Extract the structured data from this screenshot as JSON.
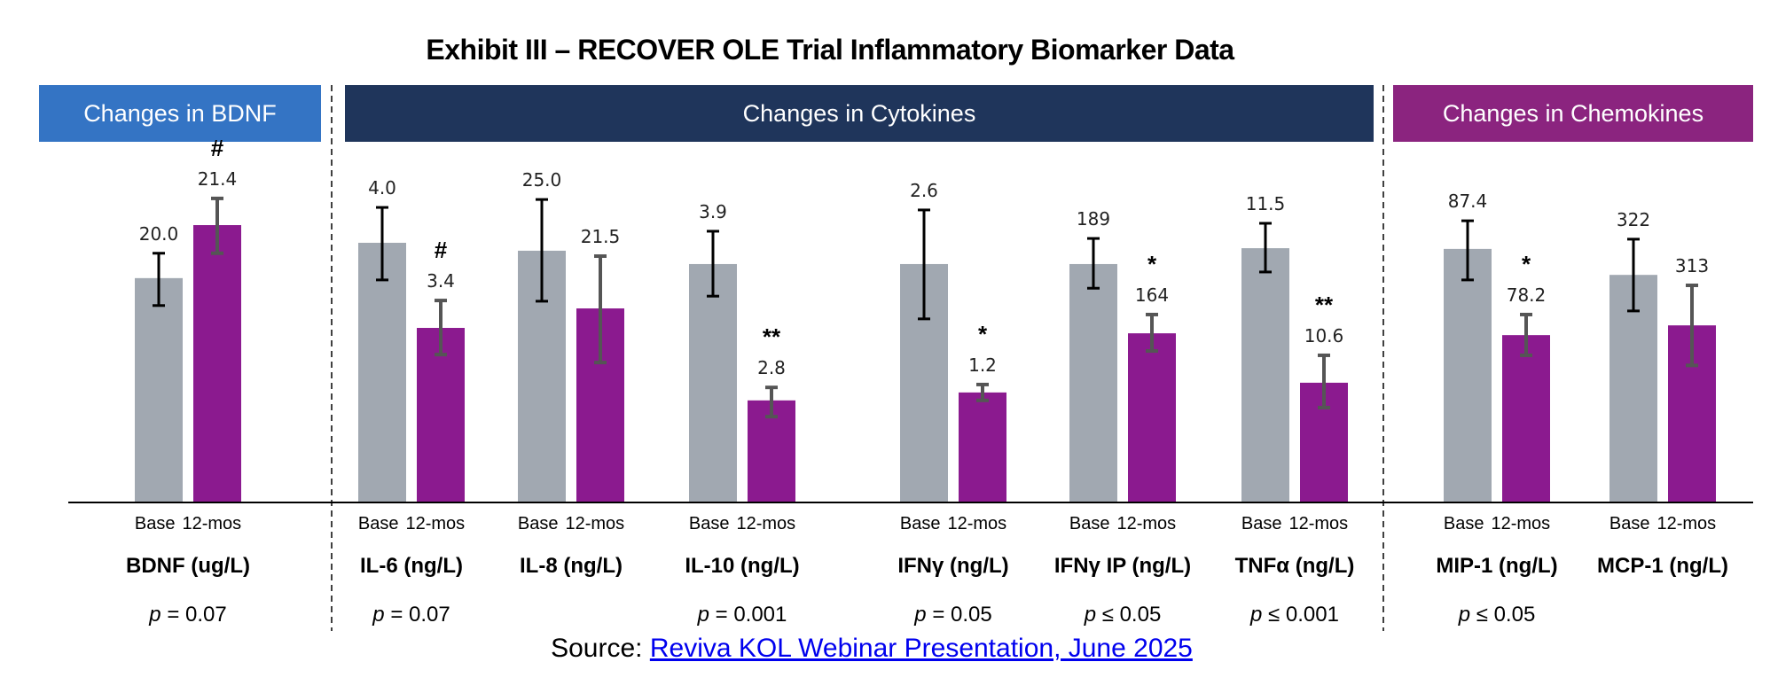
{
  "title": "Exhibit III – RECOVER OLE Trial Inflammatory Biomarker Data",
  "headers": {
    "bdnf": "Changes in BDNF",
    "cytokines": "Changes in Cytokines",
    "chemokines": "Changes in Chemokines"
  },
  "colors": {
    "bdnf_header": "#3474C4",
    "cytokines_header": "#1F355B",
    "chemokines_header": "#8B247F",
    "base_bar": "#A1A8B1",
    "month12_bar": "#8B1A8F",
    "base_error": "#000000",
    "month12_error": "#555555"
  },
  "period_labels": {
    "base": "Base",
    "month12": "12-mos"
  },
  "source": {
    "prefix": "Source: ",
    "link_text": "Reviva KOL Webinar Presentation, June 2025"
  },
  "chart_data": {
    "type": "bar",
    "title": "Exhibit III – RECOVER OLE Trial Inflammatory Biomarker Data",
    "xlabel": "",
    "ylabel": "",
    "grid": false,
    "legend": "none",
    "series_names": [
      "Base",
      "12-mos"
    ],
    "note": "bar_level and error values are bar fill levels as a fraction of the common plot height (each marker normalized independently; no shared y-axis)",
    "categories": [
      {
        "name": "BDNF (ug/L)",
        "group": "bdnf",
        "base": "20.0",
        "month12": "21.4",
        "marker": "#",
        "p": "p = 0.07",
        "base_level": 0.622,
        "m12_level": 0.769,
        "base_err": [
          0.546,
          0.691
        ],
        "m12_err": [
          0.691,
          0.843
        ]
      },
      {
        "name": "IL-6 (ng/L)",
        "group": "cytokines",
        "base": "4.0",
        "month12": "3.4",
        "marker": "#",
        "p": "p = 0.07",
        "base_level": 0.72,
        "m12_level": 0.484,
        "base_err": [
          0.617,
          0.818
        ],
        "m12_err": [
          0.41,
          0.56
        ]
      },
      {
        "name": "IL-8 (ng/L)",
        "group": "cytokines",
        "base": "25.0",
        "month12": "21.5",
        "marker": "",
        "p": "",
        "base_level": 0.698,
        "m12_level": 0.538,
        "base_err": [
          0.558,
          0.84
        ],
        "m12_err": [
          0.388,
          0.683
        ]
      },
      {
        "name": "IL-10 (ng/L)",
        "group": "cytokines",
        "base": "3.9",
        "month12": "2.8",
        "marker": "**",
        "p": "p = 0.001",
        "base_level": 0.661,
        "m12_level": 0.283,
        "base_err": [
          0.572,
          0.752
        ],
        "m12_err": [
          0.238,
          0.319
        ]
      },
      {
        "name": "IFNγ (ng/L)",
        "group": "cytokines",
        "base": "2.6",
        "month12": "1.2",
        "marker": "*",
        "p": "p = 0.05",
        "base_level": 0.661,
        "m12_level": 0.305,
        "base_err": [
          0.509,
          0.811
        ],
        "m12_err": [
          0.283,
          0.327
        ]
      },
      {
        "name": "IFNγ IP (ng/L)",
        "group": "cytokines",
        "base": "189",
        "month12": "164",
        "marker": "*",
        "p": "p ≤ 0.05",
        "base_level": 0.661,
        "m12_level": 0.469,
        "base_err": [
          0.594,
          0.732
        ],
        "m12_err": [
          0.42,
          0.521
        ]
      },
      {
        "name": "TNFα (ng/L)",
        "group": "cytokines",
        "base": "11.5",
        "month12": "10.6",
        "marker": "**",
        "p": "p ≤ 0.001",
        "base_level": 0.705,
        "m12_level": 0.332,
        "base_err": [
          0.639,
          0.774
        ],
        "m12_err": [
          0.263,
          0.408
        ]
      },
      {
        "name": "MIP-1 (ng/L)",
        "group": "chemokines",
        "base": "87.4",
        "month12": "78.2",
        "marker": "*",
        "p": "p ≤ 0.05",
        "base_level": 0.703,
        "m12_level": 0.464,
        "base_err": [
          0.617,
          0.781
        ],
        "m12_err": [
          0.408,
          0.521
        ]
      },
      {
        "name": "MCP-1 (ng/L)",
        "group": "chemokines",
        "base": "322",
        "month12": "313",
        "marker": "",
        "p": "",
        "base_level": 0.631,
        "m12_level": 0.491,
        "base_err": [
          0.531,
          0.73
        ],
        "m12_err": [
          0.38,
          0.602
        ]
      }
    ]
  }
}
